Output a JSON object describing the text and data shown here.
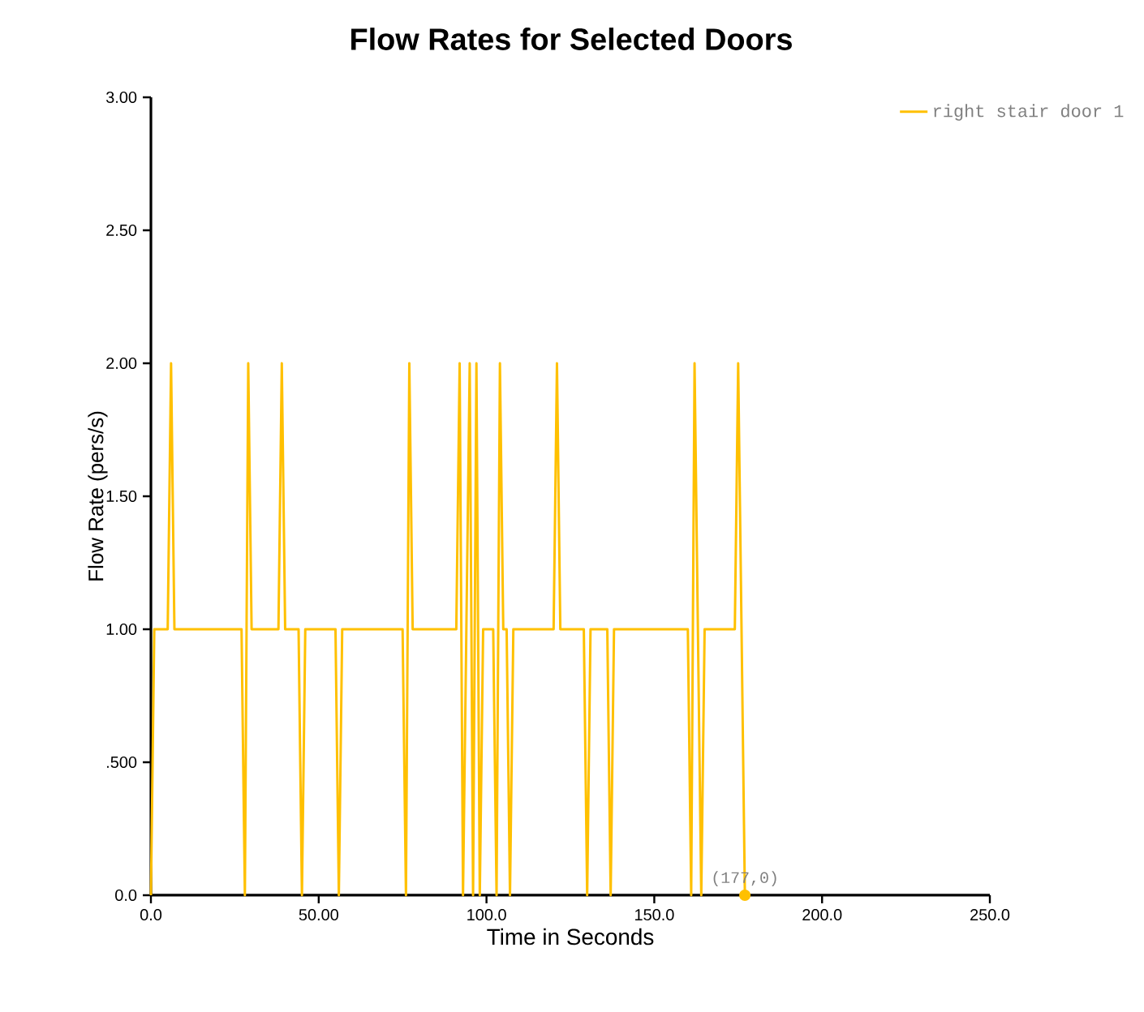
{
  "chart_data": {
    "type": "line",
    "title": "Flow Rates for Selected Doors",
    "xlabel": "Time in Seconds",
    "ylabel": "Flow Rate (pers/s)",
    "xlim": [
      0,
      250
    ],
    "ylim": [
      0,
      3
    ],
    "xticks": [
      {
        "value": 0,
        "label": "0.0"
      },
      {
        "value": 50,
        "label": "50.00"
      },
      {
        "value": 100,
        "label": "100.0"
      },
      {
        "value": 150,
        "label": "150.0"
      },
      {
        "value": 200,
        "label": "200.0"
      },
      {
        "value": 250,
        "label": "250.0"
      }
    ],
    "yticks": [
      {
        "value": 0,
        "label": "0.0"
      },
      {
        "value": 0.5,
        "label": ".500"
      },
      {
        "value": 1,
        "label": "1.00"
      },
      {
        "value": 1.5,
        "label": "1.50"
      },
      {
        "value": 2,
        "label": "2.00"
      },
      {
        "value": 2.5,
        "label": "2.50"
      },
      {
        "value": 3,
        "label": "3.00"
      }
    ],
    "series": [
      {
        "name": "right stair door 1",
        "color": "#ffc000",
        "x": [
          0,
          1,
          5,
          6,
          7,
          27,
          28,
          29,
          30,
          38,
          39,
          40,
          44,
          45,
          46,
          55,
          56,
          57,
          75,
          76,
          77,
          78,
          91,
          92,
          93,
          95,
          96,
          97,
          98,
          99,
          102,
          103,
          104,
          105,
          106,
          107,
          108,
          120,
          121,
          122,
          129,
          130,
          131,
          136,
          137,
          138,
          160,
          161,
          162,
          164,
          165,
          174,
          175,
          177
        ],
        "values": [
          0,
          1,
          1,
          2,
          1,
          1,
          0,
          2,
          1,
          1,
          2,
          1,
          1,
          0,
          1,
          1,
          0,
          1,
          1,
          0,
          2,
          1,
          1,
          2,
          0,
          2,
          0,
          2,
          0,
          1,
          1,
          0,
          2,
          1,
          1,
          0,
          1,
          1,
          2,
          1,
          1,
          0,
          1,
          1,
          0,
          1,
          1,
          0,
          2,
          0,
          1,
          1,
          2,
          0
        ]
      }
    ],
    "annotations": [
      {
        "text": "(177,0)",
        "x": 177,
        "y": 0
      }
    ],
    "legend": "top right",
    "grid": false,
    "marker": "none",
    "line_style": "solid"
  }
}
